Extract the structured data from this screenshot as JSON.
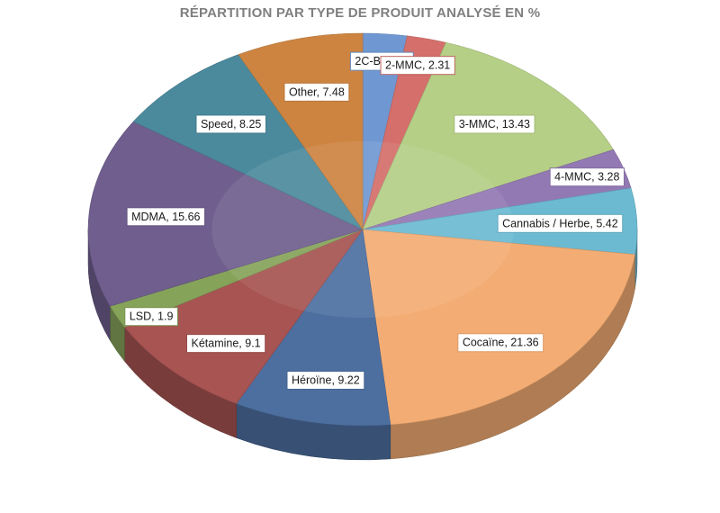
{
  "chart_data": {
    "type": "pie",
    "title": "RÉPARTITION PAR TYPE DE PRODUIT ANALYSÉ EN %",
    "slices": [
      {
        "label": "2C-B",
        "value": 2.59,
        "color": "#6f98d2",
        "text": "2C-B, 2.59"
      },
      {
        "label": "2-MMC",
        "value": 2.31,
        "color": "#d46f6b",
        "text": "2-MMC, 2.31"
      },
      {
        "label": "3-MMC",
        "value": 13.43,
        "color": "#b5cf86",
        "text": "3-MMC, 13.43"
      },
      {
        "label": "4-MMC",
        "value": 3.28,
        "color": "#9379b4",
        "text": "4-MMC, 3.28"
      },
      {
        "label": "Cannabis / Herbe",
        "value": 5.42,
        "color": "#6cbad2",
        "text": "Cannabis / Herbe, 5.42"
      },
      {
        "label": "Cocaïne",
        "value": 21.36,
        "color": "#f3ac73",
        "text": "Cocaïne, 21.36"
      },
      {
        "label": "Héroïne",
        "value": 9.22,
        "color": "#4d6fa0",
        "text": "Héroïne, 9.22"
      },
      {
        "label": "Kétamine",
        "value": 9.1,
        "color": "#a75452",
        "text": "Kétamine, 9.1"
      },
      {
        "label": "LSD",
        "value": 1.9,
        "color": "#86a35a",
        "text": "LSD, 1.9"
      },
      {
        "label": "MDMA",
        "value": 15.66,
        "color": "#6f5e8e",
        "text": "MDMA, 15.66"
      },
      {
        "label": "Speed",
        "value": 8.25,
        "color": "#4b8a9d",
        "text": "Speed, 8.25"
      },
      {
        "label": "Other",
        "value": 7.48,
        "color": "#cd8441",
        "text": "Other, 7.48"
      }
    ]
  }
}
